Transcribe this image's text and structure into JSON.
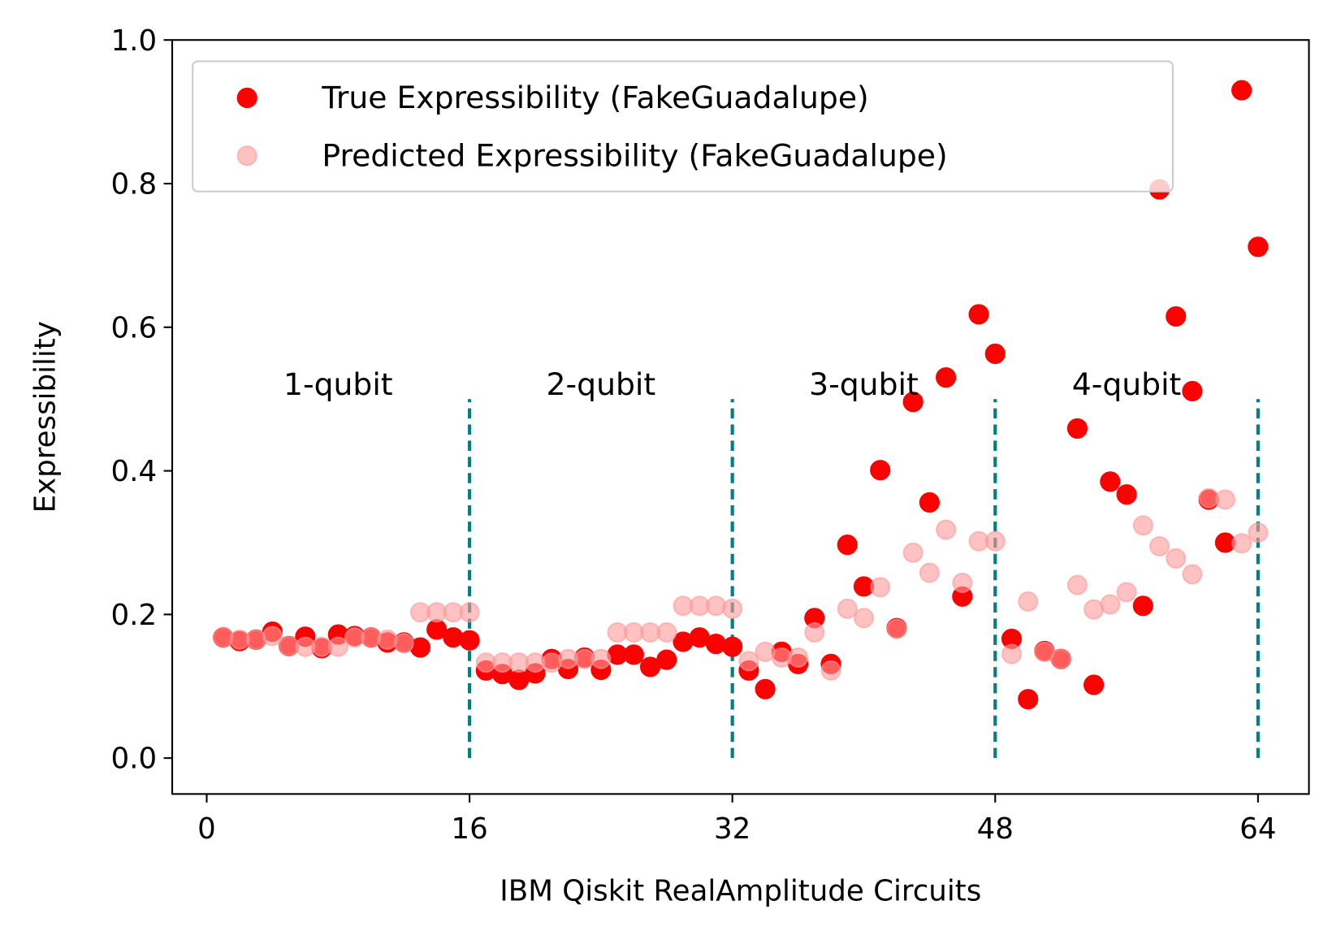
{
  "chart_data": {
    "type": "scatter",
    "xlabel": "IBM Qiskit RealAmplitude Circuits",
    "ylabel": "Expressibility",
    "xlim": [
      -2.1,
      67.1
    ],
    "ylim": [
      -0.05,
      1.0
    ],
    "xticks": [
      0,
      16,
      32,
      48,
      64
    ],
    "yticks": [
      {
        "value": 0,
        "label": "0.0"
      },
      {
        "value": 0.2,
        "label": "0.2"
      },
      {
        "value": 0.4,
        "label": "0.4"
      },
      {
        "value": 0.6,
        "label": "0.6"
      },
      {
        "value": 0.8,
        "label": "0.8"
      },
      {
        "value": 1,
        "label": "1.0"
      }
    ],
    "legend": "upper left",
    "x": [
      1,
      2,
      3,
      4,
      5,
      6,
      7,
      8,
      9,
      10,
      11,
      12,
      13,
      14,
      15,
      16,
      17,
      18,
      19,
      20,
      21,
      22,
      23,
      24,
      25,
      26,
      27,
      28,
      29,
      30,
      31,
      32,
      33,
      34,
      35,
      36,
      37,
      38,
      39,
      40,
      41,
      42,
      43,
      44,
      45,
      46,
      47,
      48,
      49,
      50,
      51,
      52,
      53,
      54,
      55,
      56,
      57,
      58,
      59,
      60,
      61,
      62,
      63,
      64
    ],
    "series": [
      {
        "name": "True Expressibility (FakeGuadalupe)",
        "color": "#ff0000",
        "opacity": 1,
        "values": [
          0.168,
          0.163,
          0.165,
          0.176,
          0.156,
          0.169,
          0.153,
          0.172,
          0.17,
          0.168,
          0.161,
          0.161,
          0.154,
          0.179,
          0.168,
          0.164,
          0.122,
          0.117,
          0.109,
          0.118,
          0.138,
          0.124,
          0.14,
          0.123,
          0.144,
          0.144,
          0.127,
          0.137,
          0.162,
          0.168,
          0.159,
          0.155,
          0.122,
          0.096,
          0.148,
          0.131,
          0.195,
          0.131,
          0.297,
          0.239,
          0.401,
          0.181,
          0.496,
          0.356,
          0.53,
          0.225,
          0.618,
          0.563,
          0.166,
          0.082,
          0.149,
          0.138,
          0.459,
          0.102,
          0.385,
          0.367,
          0.212,
          0.792,
          0.615,
          0.511,
          0.36,
          0.3,
          0.93,
          0.712
        ]
      },
      {
        "name": "Predicted Expressibility (FakeGuadalupe)",
        "color": "#ff9999",
        "opacity": 0.6,
        "values": [
          0.168,
          0.165,
          0.165,
          0.17,
          0.156,
          0.155,
          0.155,
          0.155,
          0.168,
          0.168,
          0.165,
          0.16,
          0.203,
          0.203,
          0.203,
          0.203,
          0.133,
          0.133,
          0.133,
          0.133,
          0.133,
          0.138,
          0.138,
          0.138,
          0.175,
          0.175,
          0.175,
          0.175,
          0.212,
          0.212,
          0.212,
          0.208,
          0.135,
          0.148,
          0.14,
          0.14,
          0.175,
          0.122,
          0.208,
          0.195,
          0.238,
          0.18,
          0.286,
          0.258,
          0.318,
          0.244,
          0.302,
          0.302,
          0.145,
          0.218,
          0.148,
          0.138,
          0.241,
          0.207,
          0.214,
          0.231,
          0.324,
          0.295,
          0.278,
          0.256,
          0.362,
          0.36,
          0.299,
          0.314
        ]
      }
    ],
    "vlines": {
      "x": [
        16,
        32,
        48,
        64
      ],
      "ymin": 0,
      "ymax": 0.5,
      "color": "#008080"
    },
    "annotations": [
      {
        "text": "1-qubit",
        "x": 8,
        "y": 0.5
      },
      {
        "text": "2-qubit",
        "x": 24,
        "y": 0.5
      },
      {
        "text": "3-qubit",
        "x": 40,
        "y": 0.5
      },
      {
        "text": "4-qubit",
        "x": 56,
        "y": 0.5
      }
    ]
  }
}
